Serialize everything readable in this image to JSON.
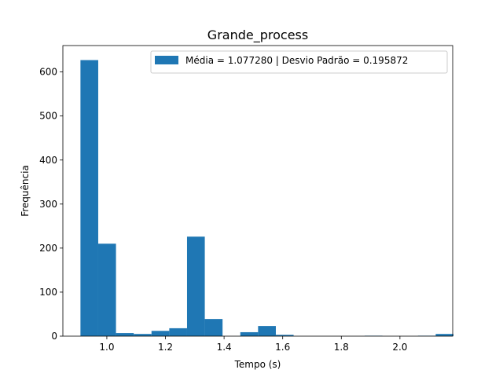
{
  "chart_data": {
    "type": "bar",
    "title": "Grande_process",
    "xlabel": "Tempo (s)",
    "ylabel": "Frequência",
    "xlim": [
      0.85,
      2.18
    ],
    "ylim": [
      0,
      660
    ],
    "xticks": [
      "1.0",
      "1.2",
      "1.4",
      "1.6",
      "1.8",
      "2.0"
    ],
    "xtick_values": [
      1.0,
      1.2,
      1.4,
      1.6,
      1.8,
      2.0
    ],
    "yticks": [
      "0",
      "100",
      "200",
      "300",
      "400",
      "500",
      "600"
    ],
    "ytick_values": [
      0,
      100,
      200,
      300,
      400,
      500,
      600
    ],
    "bin_start": 0.91,
    "bin_width": 0.0606,
    "values": [
      627,
      210,
      7,
      5,
      12,
      18,
      226,
      39,
      0,
      9,
      23,
      3,
      0,
      0,
      0,
      0,
      1,
      0,
      0,
      1,
      5
    ],
    "legend": {
      "label": "Média = 1.077280 | Desvio Padrão = 0.195872",
      "placement": "upper right"
    },
    "grid": false,
    "color": "#1f77b4"
  }
}
